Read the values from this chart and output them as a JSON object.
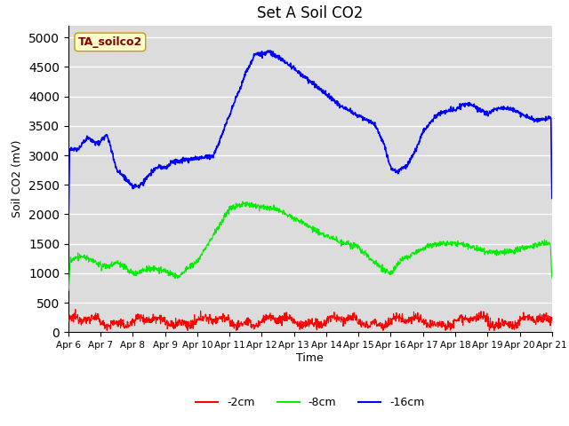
{
  "title": "Set A Soil CO2",
  "ylabel": "Soil CO2 (mV)",
  "xlabel": "Time",
  "annotation": "TA_soilco2",
  "bg_color": "#dcdcdc",
  "grid_color": "white",
  "ylim": [
    0,
    5200
  ],
  "yticks": [
    0,
    500,
    1000,
    1500,
    2000,
    2500,
    3000,
    3500,
    4000,
    4500,
    5000
  ],
  "line_colors": {
    "2cm": "#ff0000",
    "8cm": "#00ee00",
    "16cm": "#0000ff"
  },
  "legend_labels": [
    "-2cm",
    "-8cm",
    "-16cm"
  ],
  "xtick_labels": [
    "Apr 6",
    "Apr 7",
    "Apr 8",
    "Apr 9",
    "Apr 10",
    "Apr 11",
    "Apr 12",
    "Apr 13",
    "Apr 14",
    "Apr 15",
    "Apr 16",
    "Apr 17",
    "Apr 18",
    "Apr 19",
    "Apr 20",
    "Apr 21"
  ]
}
